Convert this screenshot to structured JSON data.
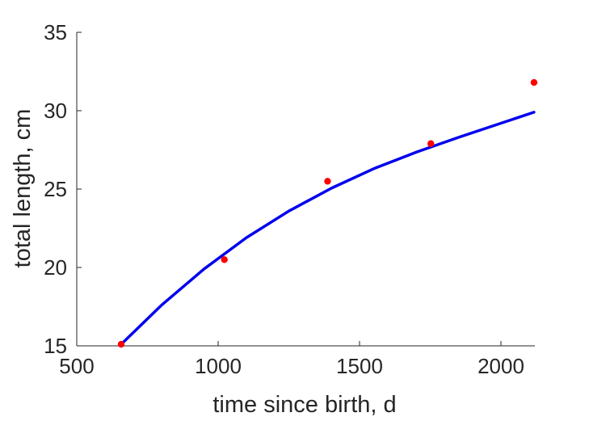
{
  "chart_data": {
    "type": "line",
    "title": "",
    "xlabel": "time since birth, d",
    "ylabel": "total length, cm",
    "xlim": [
      500,
      2120
    ],
    "ylim": [
      15,
      35
    ],
    "xticks": [
      500,
      1000,
      1500,
      2000
    ],
    "yticks": [
      15,
      20,
      25,
      30,
      35
    ],
    "grid": false,
    "legend": "none",
    "series": [
      {
        "kind": "scatter",
        "color": "#ff0000",
        "x": [
          657,
          1022,
          1387,
          1752,
          2117
        ],
        "y": [
          15.1,
          20.5,
          25.5,
          27.9,
          31.8
        ]
      },
      {
        "kind": "line",
        "color": "#0000ee",
        "x": [
          657,
          800,
          950,
          1100,
          1250,
          1400,
          1550,
          1700,
          1850,
          2000,
          2117
        ],
        "y": [
          15.1,
          17.6,
          19.9,
          21.9,
          23.6,
          25.05,
          26.3,
          27.35,
          28.3,
          29.2,
          29.9
        ]
      }
    ]
  }
}
